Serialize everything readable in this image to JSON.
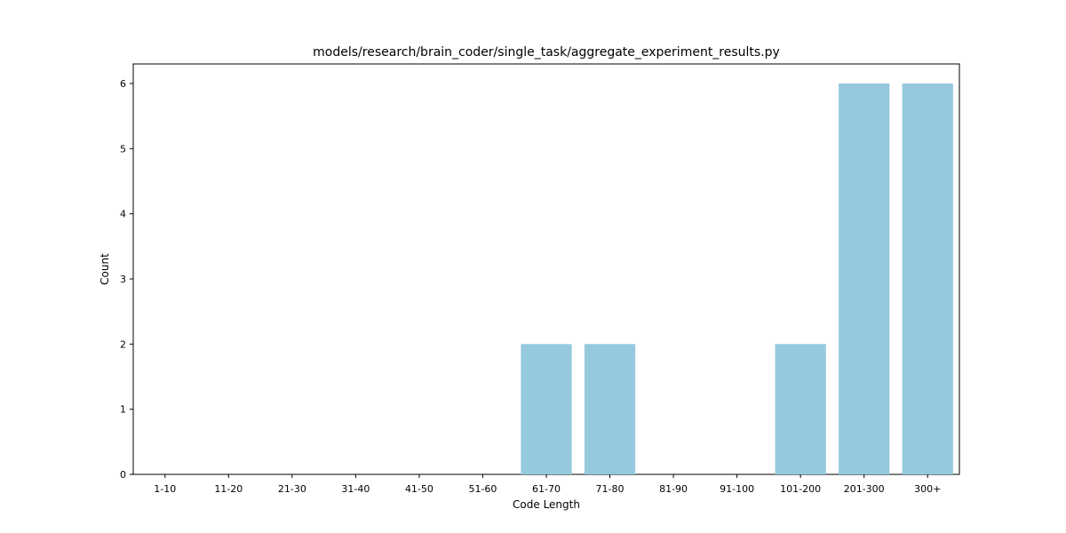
{
  "chart_data": {
    "type": "bar",
    "title": "models/research/brain_coder/single_task/aggregate_experiment_results.py",
    "xlabel": "Code Length",
    "ylabel": "Count",
    "categories": [
      "1-10",
      "11-20",
      "21-30",
      "31-40",
      "41-50",
      "51-60",
      "61-70",
      "71-80",
      "81-90",
      "91-100",
      "101-200",
      "201-300",
      "300+"
    ],
    "values": [
      0,
      0,
      0,
      0,
      0,
      0,
      2,
      2,
      0,
      0,
      2,
      6,
      6
    ],
    "ylim": [
      0,
      6.3
    ],
    "yticks": [
      0,
      1,
      2,
      3,
      4,
      5,
      6
    ],
    "grid": false,
    "legend": "none",
    "colors": {
      "bar": "#95c9de",
      "axis": "#000000"
    }
  }
}
